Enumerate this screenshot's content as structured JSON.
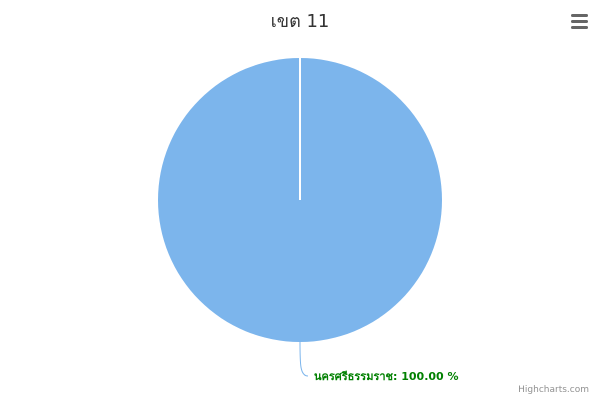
{
  "chart_data": {
    "type": "pie",
    "title": "เขต 11",
    "slices": [
      {
        "name": "นครศรีธรรมราช",
        "value": 100.0,
        "label": "นครศรีธรรมราช: 100.00 %"
      }
    ]
  },
  "colors": {
    "slice": "#7cb5ec",
    "label": "#008000",
    "connector": "#7cb5ec"
  },
  "menu": {
    "icon": "hamburger-menu-icon"
  },
  "credits": "Highcharts.com"
}
